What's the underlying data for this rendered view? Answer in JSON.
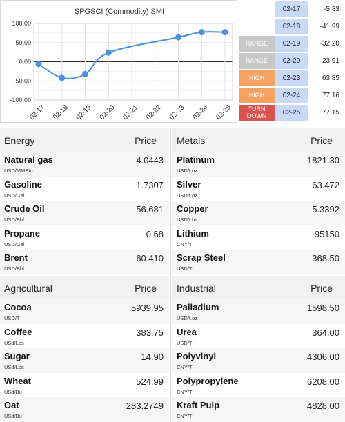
{
  "chart_data": {
    "type": "line",
    "title": "SPGSCI (Commodity) SMI",
    "categories": [
      "02-17",
      "02-18",
      "02-19",
      "02-20",
      "02-21",
      "02-22",
      "02-23",
      "02-24",
      "02-25"
    ],
    "series": [
      {
        "values": [
          -5.83,
          -41.99,
          -32.2,
          23.91,
          null,
          null,
          63.85,
          77.16,
          77.15
        ]
      }
    ],
    "yticks": [
      "100,00",
      "50,00",
      "0,00",
      "-50,00",
      "-100,00"
    ],
    "ylim": [
      -100,
      100
    ],
    "grid": true,
    "line_color": "#4a90e2"
  },
  "signals": {
    "rows": [
      {
        "label": "",
        "date": "02-17",
        "value": "-5,83"
      },
      {
        "label": "",
        "date": "02-18",
        "value": "-41,99"
      },
      {
        "label": "RANGE",
        "date": "02-19",
        "value": "-32,20"
      },
      {
        "label": "RANGE",
        "date": "02-20",
        "value": "23,91"
      },
      {
        "label": "HIGH",
        "date": "02-23",
        "value": "63,85"
      },
      {
        "label": "HIGH",
        "date": "02-24",
        "value": "77,16"
      },
      {
        "label": "TURN\nDOWN",
        "date": "02-25",
        "value": "77,15"
      }
    ]
  },
  "panels": {
    "energy": {
      "title": "Energy",
      "price_header": "Price",
      "items": [
        {
          "name": "Natural gas",
          "unit": "USD/MMBtu",
          "price": "4.0443"
        },
        {
          "name": "Gasoline",
          "unit": "USD/Gal",
          "price": "1.7307"
        },
        {
          "name": "Crude Oil",
          "unit": "USD/Bbl",
          "price": "56.681"
        },
        {
          "name": "Propane",
          "unit": "USD/Gal",
          "price": "0.68"
        },
        {
          "name": "Brent",
          "unit": "USD/Bbl",
          "price": "60.410"
        }
      ]
    },
    "metals": {
      "title": "Metals",
      "price_header": "Price",
      "items": [
        {
          "name": "Platinum",
          "unit": "USD/t.oz",
          "price": "1821.30"
        },
        {
          "name": "Silver",
          "unit": "USD/t.oz",
          "price": "63.472"
        },
        {
          "name": "Copper",
          "unit": "USD/Lbs",
          "price": "5.3392"
        },
        {
          "name": "Lithium",
          "unit": "CNY/T",
          "price": "95150"
        },
        {
          "name": "Scrap Steel",
          "unit": "USD/T",
          "price": "368.50"
        }
      ]
    },
    "agricultural": {
      "title": "Agricultural",
      "price_header": "Price",
      "items": [
        {
          "name": "Cocoa",
          "unit": "USD/T",
          "price": "5939.95"
        },
        {
          "name": "Coffee",
          "unit": "USd/Lbs",
          "price": "383.75"
        },
        {
          "name": "Sugar",
          "unit": "USd/Lbs",
          "price": "14.90"
        },
        {
          "name": "Wheat",
          "unit": "USd/Bu",
          "price": "524.99"
        },
        {
          "name": "Oat",
          "unit": "USd/Bu",
          "price": "283.2749"
        }
      ]
    },
    "industrial": {
      "title": "Industrial",
      "price_header": "Price",
      "items": [
        {
          "name": "Palladium",
          "unit": "USD/t.oz",
          "price": "1598.50"
        },
        {
          "name": "Urea",
          "unit": "USD/T",
          "price": "364.00"
        },
        {
          "name": "Polyvinyl",
          "unit": "CNY/T",
          "price": "4306.00"
        },
        {
          "name": "Polypropylene",
          "unit": "CNY/T",
          "price": "6208.00"
        },
        {
          "name": "Kraft Pulp",
          "unit": "CNY/T",
          "price": "4828.00"
        }
      ]
    }
  }
}
